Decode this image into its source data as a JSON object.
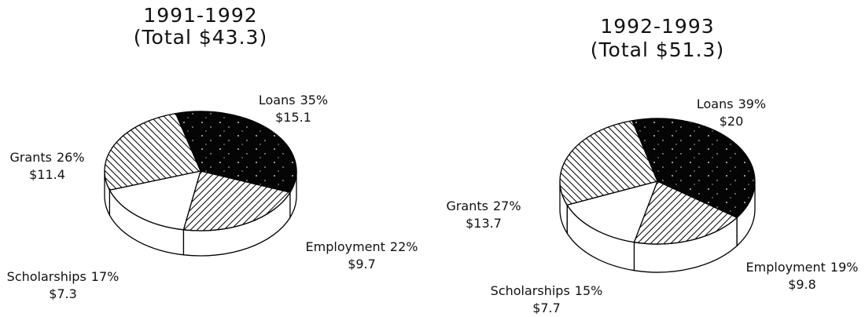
{
  "chart_data": [
    {
      "type": "pie",
      "title": "1991-1992",
      "subtitle": "(Total $43.3)",
      "categories": [
        "Loans",
        "Employment",
        "Scholarships",
        "Grants"
      ],
      "values": [
        35,
        22,
        17,
        26
      ],
      "value_labels": [
        "35%",
        "22%",
        "17%",
        "26%"
      ],
      "amounts": [
        15.1,
        9.7,
        7.3,
        11.4
      ],
      "amount_labels": [
        "$15.1",
        "$9.7",
        "$7.3",
        "$11.4"
      ]
    },
    {
      "type": "pie",
      "title": "1992-1993",
      "subtitle": "(Total $51.3)",
      "categories": [
        "Loans",
        "Employment",
        "Scholarships",
        "Grants"
      ],
      "values": [
        39,
        19,
        15,
        27
      ],
      "value_labels": [
        "39%",
        "19%",
        "15%",
        "27%"
      ],
      "amounts": [
        20,
        9.8,
        7.7,
        13.7
      ],
      "amount_labels": [
        "$20",
        "$9.8",
        "$7.7",
        "$13.7"
      ]
    }
  ]
}
